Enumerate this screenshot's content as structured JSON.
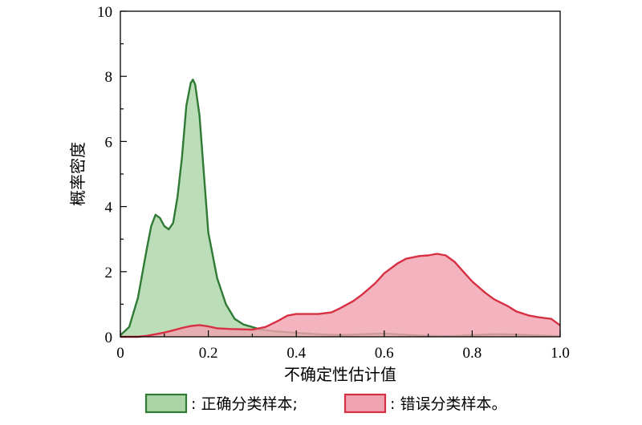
{
  "chart_data": {
    "type": "area",
    "xlabel": "不确定性估计值",
    "ylabel": "概率密度",
    "xlim": [
      0,
      1.0
    ],
    "ylim": [
      0,
      10
    ],
    "x_ticks": [
      "0",
      "0.2",
      "0.4",
      "0.6",
      "0.8",
      "1.0"
    ],
    "y_ticks": [
      "0",
      "2",
      "4",
      "6",
      "8",
      "10"
    ],
    "grid": false,
    "legend_position": "bottom",
    "series": [
      {
        "name": ": 正确分类样本;",
        "fill_color": "#acd5a7",
        "line_color": "#2f7a34",
        "x": [
          0.0,
          0.02,
          0.04,
          0.06,
          0.07,
          0.08,
          0.09,
          0.1,
          0.11,
          0.12,
          0.13,
          0.14,
          0.15,
          0.16,
          0.165,
          0.17,
          0.18,
          0.19,
          0.2,
          0.22,
          0.24,
          0.26,
          0.28,
          0.3,
          0.32,
          0.35,
          0.4,
          0.45,
          0.5,
          0.55,
          0.6,
          0.65,
          0.7,
          0.75,
          0.8,
          0.85,
          0.9,
          0.95,
          1.0
        ],
        "y": [
          0.05,
          0.3,
          1.2,
          2.7,
          3.4,
          3.75,
          3.65,
          3.4,
          3.3,
          3.5,
          4.3,
          5.5,
          7.1,
          7.8,
          7.9,
          7.75,
          6.8,
          5.0,
          3.2,
          1.8,
          1.0,
          0.55,
          0.38,
          0.3,
          0.22,
          0.17,
          0.12,
          0.08,
          0.05,
          0.08,
          0.1,
          0.06,
          0.03,
          0.02,
          0.05,
          0.08,
          0.07,
          0.04,
          0.02
        ]
      },
      {
        "name": ": 错误分类样本。",
        "fill_color": "#f0a4b1",
        "line_color": "#d63042",
        "x": [
          0.0,
          0.04,
          0.06,
          0.08,
          0.1,
          0.12,
          0.14,
          0.16,
          0.18,
          0.2,
          0.22,
          0.25,
          0.28,
          0.3,
          0.33,
          0.36,
          0.38,
          0.4,
          0.43,
          0.45,
          0.48,
          0.5,
          0.53,
          0.55,
          0.58,
          0.6,
          0.63,
          0.65,
          0.68,
          0.7,
          0.72,
          0.74,
          0.76,
          0.78,
          0.8,
          0.83,
          0.85,
          0.88,
          0.9,
          0.93,
          0.95,
          0.98,
          1.0
        ],
        "y": [
          0.0,
          0.0,
          0.03,
          0.08,
          0.13,
          0.2,
          0.27,
          0.33,
          0.36,
          0.32,
          0.26,
          0.24,
          0.23,
          0.22,
          0.3,
          0.5,
          0.65,
          0.7,
          0.7,
          0.7,
          0.75,
          0.88,
          1.1,
          1.3,
          1.65,
          1.95,
          2.25,
          2.4,
          2.48,
          2.5,
          2.55,
          2.5,
          2.3,
          2.0,
          1.7,
          1.35,
          1.15,
          0.95,
          0.78,
          0.65,
          0.6,
          0.55,
          0.35
        ]
      }
    ]
  }
}
